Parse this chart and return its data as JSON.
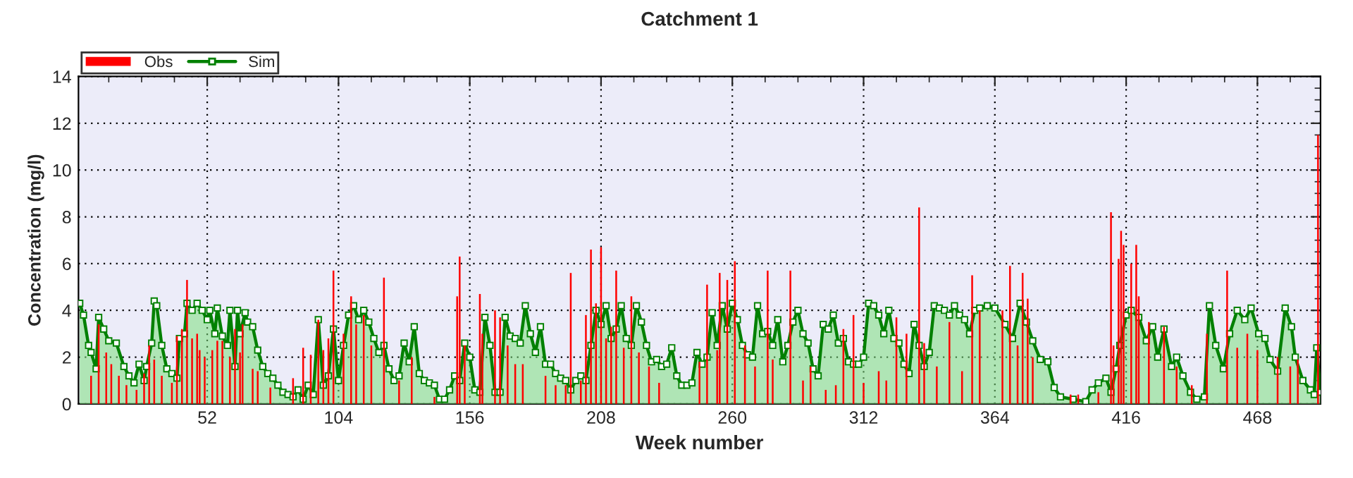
{
  "chart_data": {
    "type": "area",
    "title": "Catchment 1",
    "xlabel": "Week number",
    "ylabel": "Concentration (mg/l)",
    "xlim": [
      1,
      493
    ],
    "xticks": [
      52,
      104,
      156,
      208,
      260,
      312,
      364,
      416,
      468
    ],
    "ylim": [
      0,
      14
    ],
    "yticks": [
      0,
      2,
      4,
      6,
      8,
      10,
      12,
      14
    ],
    "grid": true,
    "legend": "top left",
    "marker": "square",
    "series": [
      {
        "name": "Obs",
        "type": "bar",
        "color": "#ff0000",
        "x": [
          6,
          9,
          12,
          14,
          17,
          20,
          24,
          27,
          29,
          31,
          34,
          38,
          40,
          42,
          44,
          46,
          48,
          49,
          51,
          54,
          56,
          58,
          61,
          63,
          65,
          66,
          70,
          72,
          77,
          86,
          90,
          93,
          96,
          98,
          100,
          102,
          106,
          109,
          111,
          114,
          117,
          122,
          128,
          133,
          142,
          151,
          152,
          154,
          160,
          161,
          166,
          168,
          171,
          174,
          177,
          186,
          190,
          194,
          196,
          200,
          202,
          204,
          206,
          208,
          210,
          212,
          214,
          217,
          220,
          223,
          227,
          231,
          247,
          250,
          254,
          255,
          258,
          261,
          265,
          269,
          274,
          276,
          283,
          288,
          291,
          297,
          301,
          304,
          308,
          312,
          318,
          321,
          325,
          329,
          334,
          336,
          341,
          346,
          351,
          355,
          358,
          367,
          370,
          373,
          375,
          377,
          379,
          394,
          397,
          405,
          410,
          411,
          413,
          414,
          415,
          418,
          420,
          421,
          425,
          431,
          436,
          442,
          448,
          456,
          460,
          464,
          468,
          476,
          481,
          484,
          492
        ],
        "values": [
          1.2,
          3.4,
          2.2,
          1.7,
          1.2,
          0.8,
          0.6,
          1.3,
          2.5,
          1.9,
          1.2,
          0.9,
          2.9,
          3.2,
          5.3,
          2.8,
          3.0,
          2.3,
          2.0,
          2.3,
          2.7,
          2.7,
          2.0,
          3.2,
          2.2,
          3.4,
          1.5,
          1.4,
          0.7,
          1.1,
          2.4,
          2.1,
          3.6,
          2.3,
          2.8,
          5.7,
          3.0,
          4.6,
          3.4,
          3.8,
          2.5,
          5.4,
          1.0,
          2.0,
          0.3,
          4.6,
          6.3,
          2.5,
          4.7,
          3.0,
          4.0,
          3.7,
          2.5,
          1.7,
          1.7,
          1.2,
          0.8,
          0.8,
          5.6,
          1.0,
          3.8,
          6.6,
          4.3,
          6.7,
          2.8,
          3.3,
          5.7,
          2.4,
          4.6,
          2.2,
          1.6,
          0.9,
          1.8,
          5.1,
          2.3,
          5.6,
          5.3,
          6.1,
          2.5,
          1.6,
          5.7,
          1.9,
          5.7,
          1.0,
          1.6,
          0.6,
          0.8,
          3.2,
          3.8,
          0.9,
          1.4,
          1.0,
          3.7,
          3.0,
          8.4,
          2.6,
          1.6,
          3.5,
          1.4,
          5.5,
          4.0,
          4.0,
          5.9,
          2.5,
          5.6,
          4.5,
          2.0,
          0.4,
          0.4,
          0.5,
          8.2,
          2.5,
          6.2,
          7.4,
          6.8,
          6.0,
          6.8,
          4.6,
          3.5,
          3.3,
          1.6,
          0.8,
          3.0,
          5.7,
          2.4,
          3.0,
          2.3,
          2.0,
          1.6,
          1.9,
          11.5
        ]
      },
      {
        "name": "Sim",
        "color": "#008000",
        "x": [
          1.5,
          3,
          5,
          6,
          8,
          9,
          11,
          13,
          16,
          19,
          21,
          23,
          25,
          27,
          28,
          30,
          31,
          32,
          34,
          36,
          38,
          40,
          41,
          43,
          44,
          46,
          48,
          50,
          52,
          53,
          55,
          56,
          58,
          60,
          61,
          63,
          64,
          65,
          67,
          68,
          70,
          72,
          74,
          76,
          78,
          80,
          82,
          84,
          86,
          88,
          90,
          92,
          94,
          96,
          98,
          100,
          102,
          104,
          106,
          108,
          110,
          112,
          114,
          116,
          118,
          120,
          122,
          124,
          126,
          128,
          130,
          132,
          134,
          136,
          138,
          140,
          142,
          144,
          146,
          148,
          150,
          152,
          154,
          156,
          158,
          160,
          162,
          164,
          166,
          168,
          170,
          172,
          174,
          176,
          178,
          180,
          182,
          184,
          186,
          188,
          190,
          192,
          194,
          196,
          198,
          200,
          202,
          204,
          206,
          208,
          210,
          212,
          214,
          216,
          218,
          220,
          222,
          224,
          226,
          228,
          230,
          232,
          234,
          236,
          238,
          240,
          242,
          244,
          246,
          248,
          250,
          252,
          254,
          256,
          258,
          260,
          262,
          264,
          266,
          268,
          270,
          272,
          274,
          276,
          278,
          280,
          282,
          284,
          286,
          288,
          290,
          292,
          294,
          296,
          298,
          300,
          302,
          304,
          306,
          308,
          310,
          312,
          314,
          316,
          318,
          320,
          322,
          324,
          326,
          328,
          330,
          332,
          334,
          336,
          338,
          340,
          342,
          344,
          346,
          348,
          350,
          352,
          354,
          356,
          358,
          361,
          364,
          368,
          371,
          374,
          376.5,
          379,
          382,
          385,
          387.5,
          390,
          395,
          400,
          402.5,
          405,
          408,
          410,
          412,
          413.5,
          416,
          418,
          421,
          424,
          426.5,
          428.5,
          431,
          434,
          436,
          438.5,
          441.5,
          444,
          447,
          449,
          451.5,
          454.5,
          457,
          460,
          463,
          465.5,
          468.5,
          471,
          473,
          476,
          479,
          481.5,
          483,
          486,
          489,
          490.5,
          491.5,
          493
        ],
        "values": [
          4.3,
          3.8,
          2.5,
          2.2,
          1.5,
          3.7,
          3.2,
          2.7,
          2.6,
          1.6,
          1.2,
          0.9,
          1.7,
          1.0,
          1.6,
          2.6,
          4.4,
          4.2,
          2.5,
          1.5,
          1.3,
          1.1,
          2.8,
          3.0,
          4.3,
          4.0,
          4.3,
          4.0,
          3.6,
          4.0,
          3.0,
          4.1,
          2.9,
          2.5,
          4.0,
          1.6,
          4.0,
          3.0,
          3.9,
          3.5,
          3.3,
          2.3,
          1.6,
          1.3,
          1.1,
          0.8,
          0.5,
          0.4,
          0.3,
          0.6,
          0.2,
          0.8,
          0.4,
          3.6,
          0.8,
          1.2,
          3.2,
          1.0,
          2.5,
          3.8,
          4.2,
          3.6,
          4.0,
          3.5,
          2.8,
          2.2,
          2.5,
          1.5,
          1.0,
          1.2,
          2.6,
          1.8,
          3.3,
          1.3,
          1.0,
          0.9,
          0.8,
          0.2,
          0.2,
          0.6,
          1.2,
          1.0,
          2.6,
          2.0,
          0.6,
          0.5,
          3.7,
          2.5,
          0.5,
          0.5,
          3.7,
          2.9,
          2.8,
          2.6,
          4.2,
          3.0,
          2.2,
          3.3,
          1.7,
          1.7,
          1.3,
          1.1,
          1.0,
          0.6,
          1.0,
          1.2,
          1.0,
          2.5,
          4.0,
          3.4,
          4.2,
          2.8,
          3.2,
          4.2,
          2.8,
          2.5,
          4.2,
          3.5,
          2.5,
          1.8,
          1.9,
          1.6,
          1.7,
          2.4,
          1.2,
          0.8,
          0.8,
          0.9,
          2.2,
          1.7,
          2.0,
          3.9,
          2.5,
          4.2,
          3.2,
          4.3,
          3.6,
          2.5,
          2.1,
          2.0,
          4.2,
          3.0,
          3.1,
          2.5,
          3.6,
          1.8,
          2.5,
          3.5,
          4.0,
          3.0,
          2.6,
          1.5,
          1.2,
          3.4,
          3.2,
          3.8,
          2.6,
          2.8,
          1.8,
          1.7,
          1.7,
          2.0,
          4.3,
          4.2,
          3.8,
          3.0,
          4.0,
          2.8,
          2.6,
          1.7,
          1.3,
          3.4,
          2.5,
          1.6,
          2.2,
          4.2,
          4.1,
          4.0,
          3.8,
          4.2,
          3.8,
          3.6,
          3.0,
          4.0,
          4.1,
          4.2,
          4.1,
          3.4,
          2.8,
          4.3,
          3.5,
          2.7,
          1.9,
          1.8,
          0.7,
          0.3,
          0.2,
          0.1,
          0.6,
          0.9,
          1.1,
          0.5,
          1.5,
          2.5,
          3.8,
          4.0,
          3.7,
          2.7,
          3.3,
          2.0,
          3.2,
          1.6,
          2.0,
          1.2,
          0.5,
          0.2,
          0.3,
          4.2,
          2.5,
          1.5,
          3.0,
          4.0,
          3.6,
          4.1,
          3.0,
          2.8,
          1.9,
          1.4,
          4.1,
          3.3,
          2.0,
          1.0,
          0.6,
          0.4,
          2.4,
          0.5
        ]
      }
    ]
  }
}
